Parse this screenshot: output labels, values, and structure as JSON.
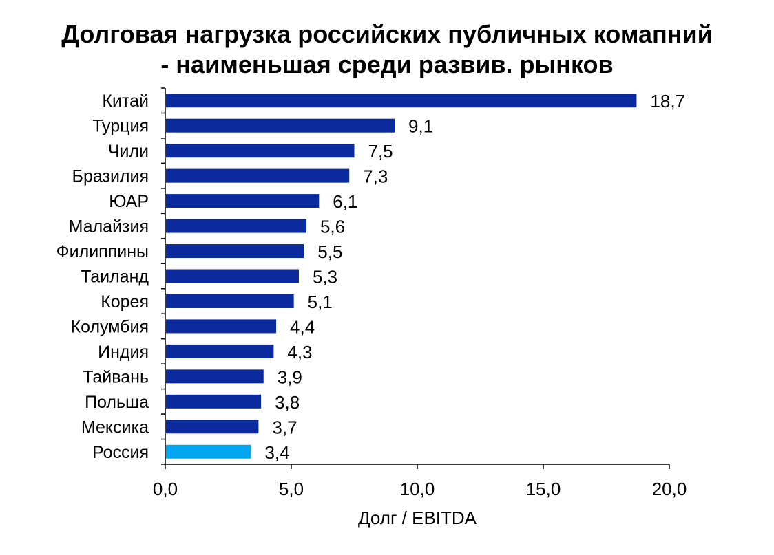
{
  "title": {
    "line1": "Долговая нагрузка российских публичных комапний",
    "line2": "- наименьшая среди развив. рынков"
  },
  "chart_data": {
    "type": "bar",
    "orientation": "horizontal",
    "title": "Долговая нагрузка российских публичных комапний - наименьшая среди развив. рынков",
    "xlabel": "Долг / EBITDA",
    "ylabel": "",
    "xlim": [
      0,
      20
    ],
    "xticks": [
      "0,0",
      "5,0",
      "10,0",
      "15,0",
      "20,0"
    ],
    "grid": false,
    "categories": [
      "Китай",
      "Турция",
      "Чили",
      "Бразилия",
      "ЮАР",
      "Малайзия",
      "Филиппины",
      "Таиланд",
      "Корея",
      "Колумбия",
      "Индия",
      "Тайвань",
      "Польша",
      "Мексика",
      "Россия"
    ],
    "values": [
      18.7,
      9.1,
      7.5,
      7.3,
      6.1,
      5.6,
      5.5,
      5.3,
      5.1,
      4.4,
      4.3,
      3.9,
      3.8,
      3.7,
      3.4
    ],
    "value_labels": [
      "18,7",
      "9,1",
      "7,5",
      "7,3",
      "6,1",
      "5,6",
      "5,5",
      "5,3",
      "5,1",
      "4,4",
      "4,3",
      "3,9",
      "3,8",
      "3,7",
      "3,4"
    ],
    "colors": {
      "default_bar": "#0A2A9E",
      "highlight_bar": "#00A6F0",
      "highlight_category": "Россия",
      "axis": "#000000"
    }
  }
}
